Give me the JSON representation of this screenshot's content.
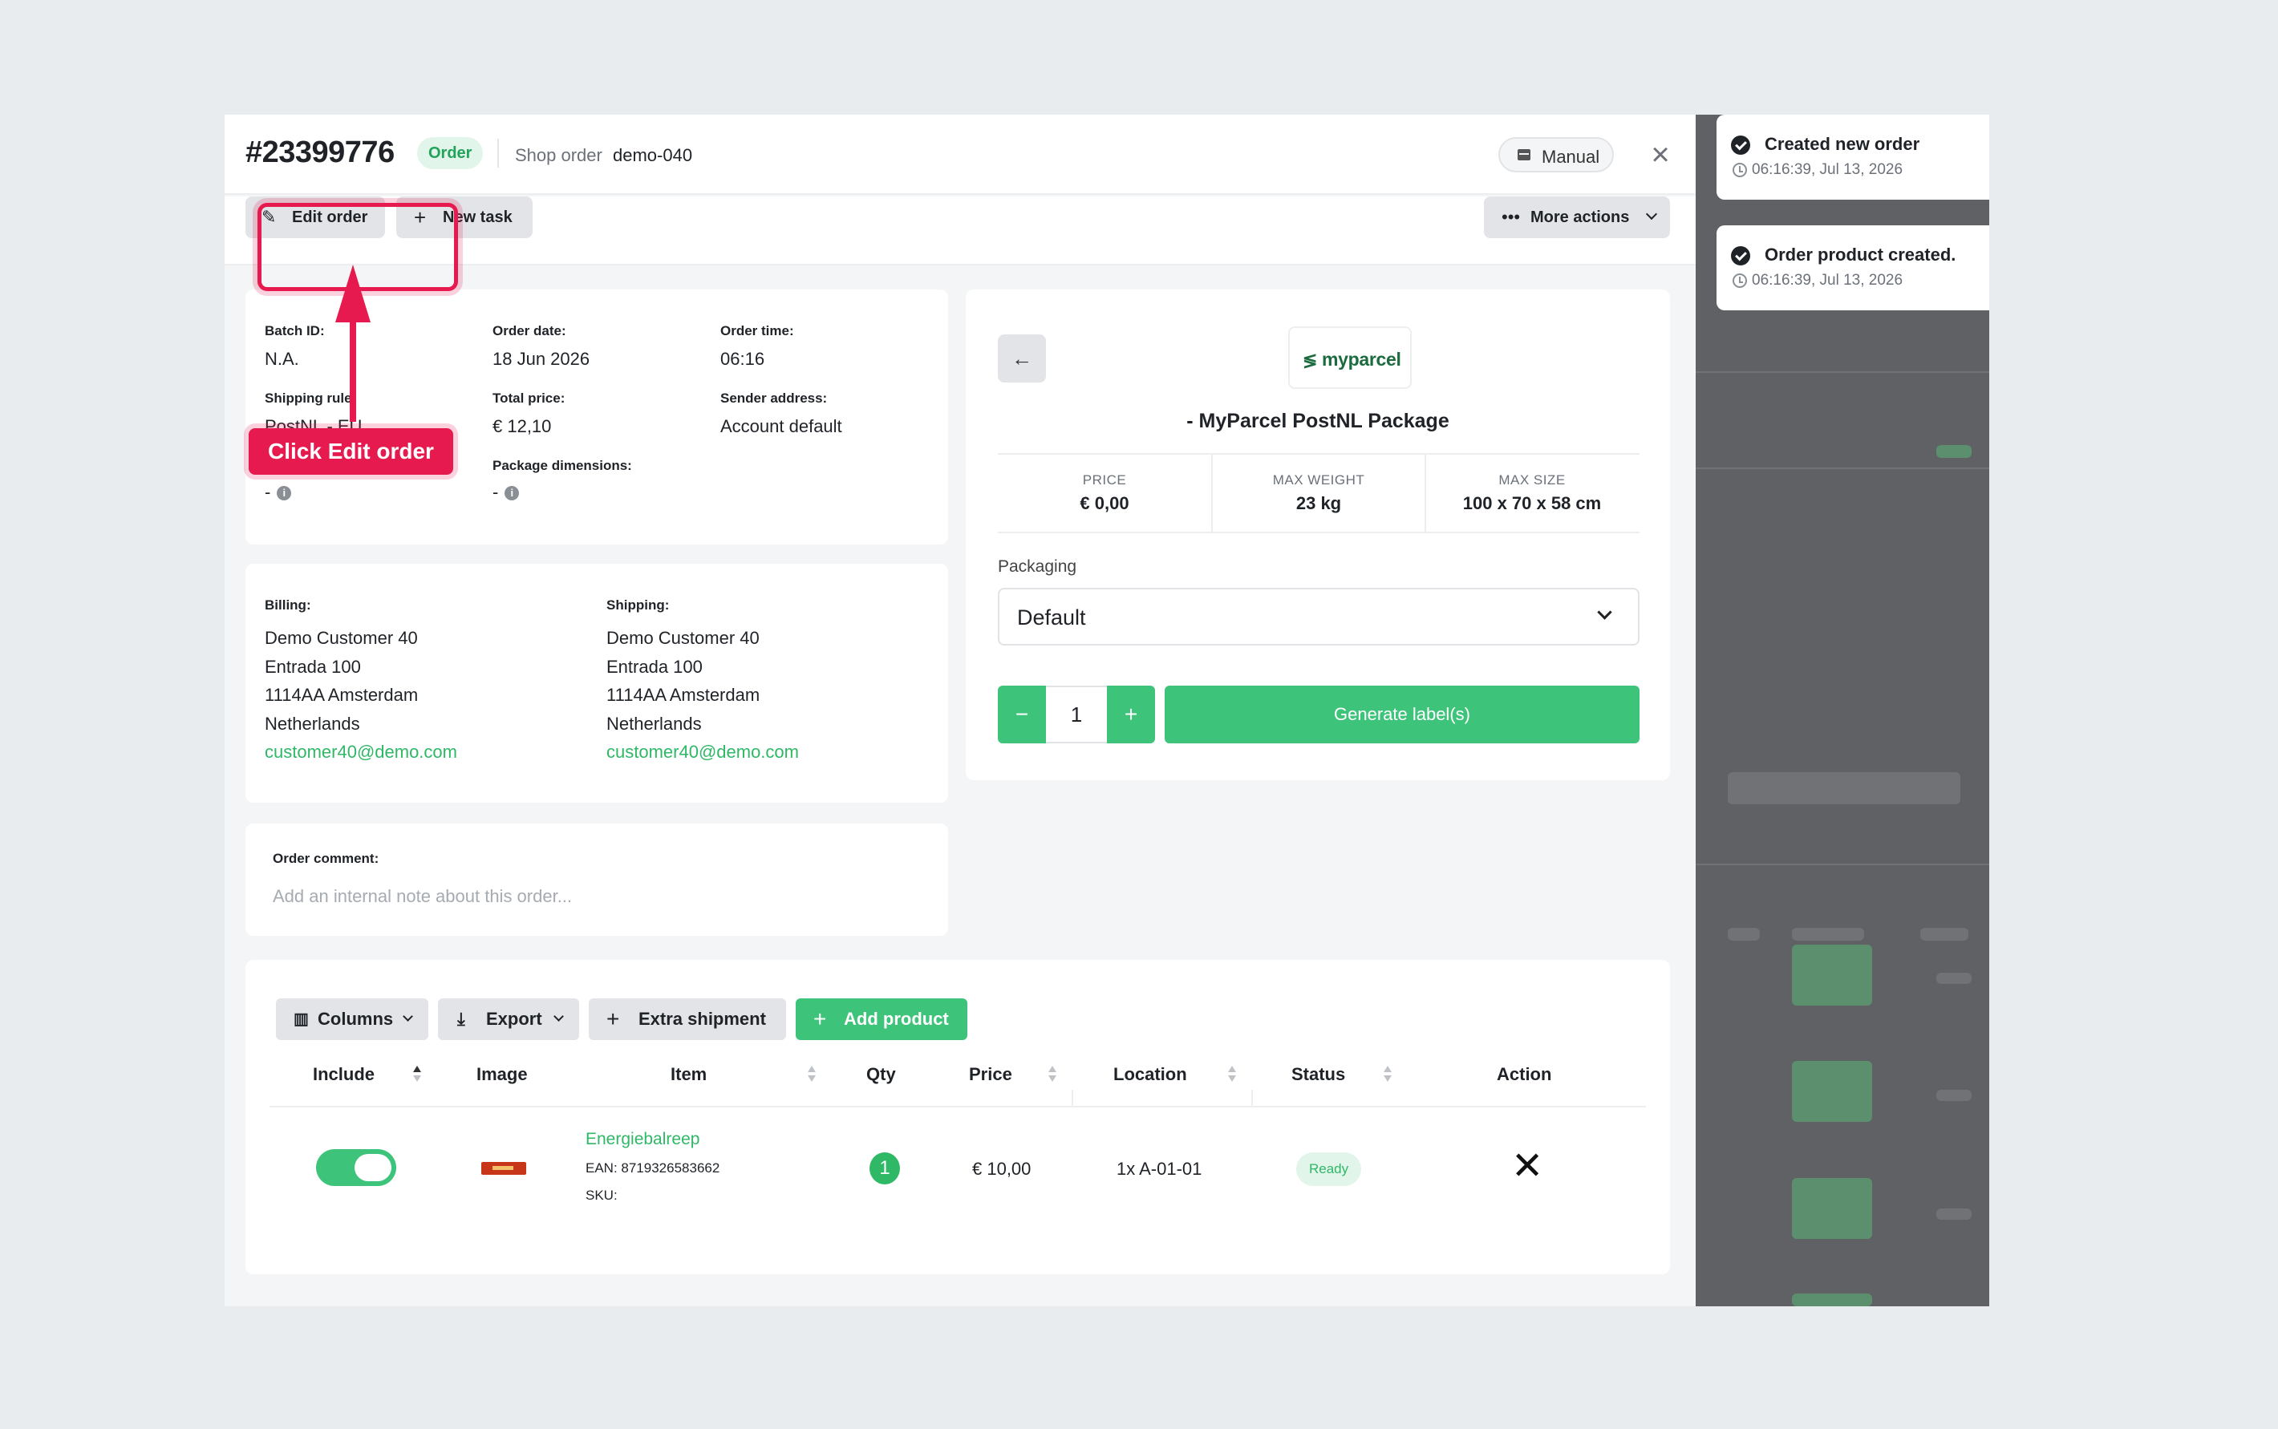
{
  "header": {
    "order_number": "#23399776",
    "order_badge": "Order",
    "shop_order_label": "Shop order",
    "shop_order_value": "demo-040",
    "manual_label": "Manual",
    "close_icon": "close-icon"
  },
  "toolbar": {
    "edit_order": "Edit order",
    "new_task": "New task",
    "more_actions": "More actions"
  },
  "order_info": {
    "batch_id_label": "Batch ID:",
    "batch_id_value": "N.A.",
    "order_date_label": "Order date:",
    "order_date_value": "18 Jun 2026",
    "order_time_label": "Order time:",
    "order_time_value": "06:16",
    "shipping_rule_label": "Shipping rule:",
    "shipping_rule_value": "PostNL - EU",
    "total_price_label": "Total price:",
    "total_price_value": "€ 12,10",
    "sender_address_label": "Sender address:",
    "sender_address_value": "Account default",
    "package_dimensions_label": "Package dimensions:",
    "dash": "-"
  },
  "addresses": {
    "billing": {
      "label": "Billing:",
      "lines": [
        "Demo Customer 40",
        "Entrada 100",
        "1114AA Amsterdam",
        "Netherlands"
      ],
      "email": "customer40@demo.com"
    },
    "shipping": {
      "label": "Shipping:",
      "lines": [
        "Demo Customer 40",
        "Entrada 100",
        "1114AA Amsterdam",
        "Netherlands"
      ],
      "email": "customer40@demo.com"
    }
  },
  "comment": {
    "label": "Order comment:",
    "placeholder": "Add an internal note about this order..."
  },
  "carrier": {
    "logo_text": "myparcel",
    "name": "- MyParcel PostNL Package",
    "price_label": "PRICE",
    "price_value": "€ 0,00",
    "max_weight_label": "MAX WEIGHT",
    "max_weight_value": "23 kg",
    "max_size_label": "MAX SIZE",
    "max_size_value": "100 x 70 x 58 cm",
    "packaging_label": "Packaging",
    "packaging_value": "Default",
    "quantity": "1",
    "minus": "−",
    "plus": "+",
    "generate_label": "Generate label(s)"
  },
  "products": {
    "buttons": {
      "columns": "Columns",
      "export": "Export",
      "extra_shipment": "Extra shipment",
      "add_product": "Add product"
    },
    "headers": [
      "Include",
      "Image",
      "Item",
      "Qty",
      "Price",
      "Location",
      "Status",
      "Action"
    ],
    "rows": [
      {
        "item_name": "Energiebalreep",
        "ean": "EAN: 8719326583662",
        "sku": "SKU:",
        "qty": "1",
        "price": "€ 10,00",
        "location": "1x A-01-01",
        "status": "Ready",
        "include": true
      }
    ]
  },
  "toasts": [
    {
      "title": "Created new order",
      "time": "06:16:39, Jul 13, 2026"
    },
    {
      "title": "Order product created.",
      "time": "06:16:39, Jul 13, 2026"
    }
  ],
  "annotation": {
    "callout": "Click Edit order"
  },
  "colors": {
    "accent_green": "#3dc47a",
    "annotation_red": "#e61a4e"
  }
}
